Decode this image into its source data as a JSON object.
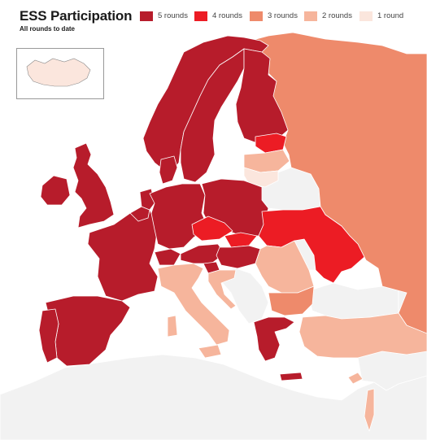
{
  "title": "ESS Participation",
  "subtitle": "All rounds to date",
  "legend": [
    {
      "label": "5 rounds",
      "color": "#b71c2b"
    },
    {
      "label": "4 rounds",
      "color": "#ec1c24"
    },
    {
      "label": "3 rounds",
      "color": "#ee8a6b"
    },
    {
      "label": "2 rounds",
      "color": "#f6b59c"
    },
    {
      "label": "1 round",
      "color": "#fbe6dd"
    }
  ],
  "colors": {
    "no_data": "#f2f2f2",
    "border": "#ffffff",
    "outline": "#8a8a8a",
    "sea": "#ffffff"
  },
  "countries": [
    {
      "name": "Norway",
      "rounds": 5
    },
    {
      "name": "Sweden",
      "rounds": 5
    },
    {
      "name": "Finland",
      "rounds": 5
    },
    {
      "name": "Denmark",
      "rounds": 5
    },
    {
      "name": "United Kingdom",
      "rounds": 5
    },
    {
      "name": "Ireland",
      "rounds": 5
    },
    {
      "name": "France",
      "rounds": 5
    },
    {
      "name": "Spain",
      "rounds": 5
    },
    {
      "name": "Portugal",
      "rounds": 5
    },
    {
      "name": "Belgium",
      "rounds": 5
    },
    {
      "name": "Netherlands",
      "rounds": 5
    },
    {
      "name": "Germany",
      "rounds": 5
    },
    {
      "name": "Poland",
      "rounds": 5
    },
    {
      "name": "Switzerland",
      "rounds": 5
    },
    {
      "name": "Austria",
      "rounds": 5
    },
    {
      "name": "Slovenia",
      "rounds": 5
    },
    {
      "name": "Hungary",
      "rounds": 5
    },
    {
      "name": "Greece",
      "rounds": 5
    },
    {
      "name": "Estonia",
      "rounds": 4
    },
    {
      "name": "Czech Republic",
      "rounds": 4
    },
    {
      "name": "Slovakia",
      "rounds": 4
    },
    {
      "name": "Ukraine",
      "rounds": 4
    },
    {
      "name": "Russia",
      "rounds": 3
    },
    {
      "name": "Bulgaria",
      "rounds": 3
    },
    {
      "name": "Latvia",
      "rounds": 2
    },
    {
      "name": "Italy",
      "rounds": 2
    },
    {
      "name": "Romania",
      "rounds": 2
    },
    {
      "name": "Turkey",
      "rounds": 2
    },
    {
      "name": "Cyprus",
      "rounds": 2
    },
    {
      "name": "Israel",
      "rounds": 2
    },
    {
      "name": "Croatia",
      "rounds": 2
    },
    {
      "name": "Iceland",
      "rounds": 1
    },
    {
      "name": "Lithuania",
      "rounds": 1
    }
  ]
}
